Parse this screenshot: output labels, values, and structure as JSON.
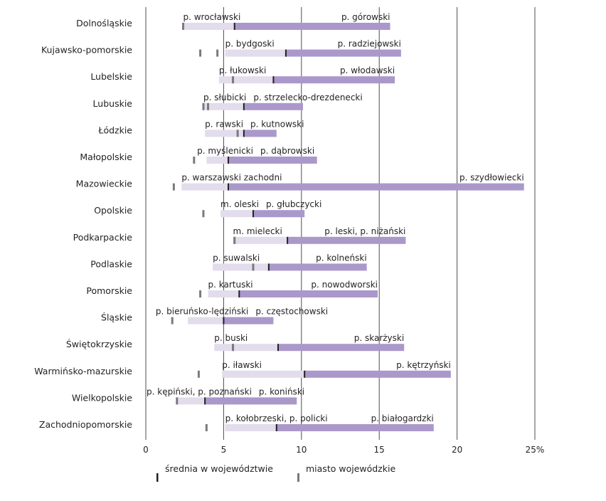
{
  "chart_data": {
    "type": "bar",
    "subtype": "range-bar-horizontal",
    "xlim": [
      0,
      25
    ],
    "x_ticks": [
      "0",
      "5",
      "10",
      "15",
      "20",
      "25%"
    ],
    "grid": true,
    "colors": {
      "low_segment": "#e2dcec",
      "high_segment": "#ab98cb",
      "average_marker": "#231f20",
      "city_marker": "#7a7a7a",
      "grid": "#4d4d4d"
    },
    "legend": {
      "placement": "bottom",
      "items": [
        {
          "label": "średnia w województwie",
          "marker": "average_marker"
        },
        {
          "label": "miasto wojewódzkie",
          "marker": "city_marker"
        }
      ]
    },
    "rows": [
      {
        "region": "Dolnośląskie",
        "min": 2.4,
        "min_label": "p. wrocławski",
        "avg": 5.7,
        "max": 15.7,
        "max_label": "p. górowski",
        "cities": [
          2.4
        ]
      },
      {
        "region": "Kujawsko-pomorskie",
        "min": 5.1,
        "min_label": "p. bydgoski",
        "avg": 9.0,
        "max": 16.4,
        "max_label": "p. radziejowski",
        "cities": [
          3.5,
          4.6
        ]
      },
      {
        "region": "Lubelskie",
        "min": 4.7,
        "min_label": "p. łukowski",
        "avg": 8.2,
        "max": 16.0,
        "max_label": "p. włodawski",
        "cities": [
          5.6
        ]
      },
      {
        "region": "Lubuskie",
        "min": 3.7,
        "min_label": "p. słubicki",
        "avg": 6.3,
        "max": 10.1,
        "max_label": "p. strzelecko-drezdenecki",
        "cities": [
          3.7,
          4.0
        ]
      },
      {
        "region": "Łódzkie",
        "min": 3.8,
        "min_label": "p. rawski",
        "avg": 6.3,
        "max": 8.4,
        "max_label": "p. kutnowski",
        "cities": [
          5.9
        ]
      },
      {
        "region": "Małopolskie",
        "min": 3.9,
        "min_label": "p. myślenicki",
        "avg": 5.3,
        "max": 11.0,
        "max_label": "p. dąbrowski",
        "cities": [
          3.1
        ]
      },
      {
        "region": "Mazowieckie",
        "min": 2.3,
        "min_label": "p. warszawski zachodni",
        "avg": 5.3,
        "max": 24.3,
        "max_label": "p. szydłowiecki",
        "cities": [
          1.8
        ]
      },
      {
        "region": "Opolskie",
        "min": 4.8,
        "min_label": "m. oleski",
        "avg": 6.9,
        "max": 10.2,
        "max_label": "p. głubczycki",
        "cities": [
          3.7
        ]
      },
      {
        "region": "Podkarpackie",
        "min": 5.6,
        "min_label": "m. mielecki",
        "avg": 9.1,
        "max": 16.7,
        "max_label": "p. leski, p. niżański",
        "cities": [
          5.7
        ]
      },
      {
        "region": "Podlaskie",
        "min": 4.3,
        "min_label": "p. suwalski",
        "avg": 7.9,
        "max": 14.2,
        "max_label": "p. kolneński",
        "cities": [
          6.9
        ]
      },
      {
        "region": "Pomorskie",
        "min": 4.0,
        "min_label": "p. kartuski",
        "avg": 6.0,
        "max": 14.9,
        "max_label": "p. nowodworski",
        "cities": [
          3.5
        ]
      },
      {
        "region": "Śląskie",
        "min": 2.7,
        "min_label": "p. bieruńsko-lędziński",
        "avg": 5.0,
        "max": 8.2,
        "max_label": "p. częstochowski",
        "cities": [
          1.7
        ]
      },
      {
        "region": "Świętokrzyskie",
        "min": 4.4,
        "min_label": "p. buski",
        "avg": 8.5,
        "max": 16.6,
        "max_label": "p. skarżyski",
        "cities": [
          5.6
        ]
      },
      {
        "region": "Warmińsko-mazurskie",
        "min": 4.9,
        "min_label": "p. iławski",
        "avg": 10.2,
        "max": 19.6,
        "max_label": "p. kętrzyński",
        "cities": [
          3.4
        ]
      },
      {
        "region": "Wielkopolskie",
        "min": 2.0,
        "min_label": "p. kępiński, p. poznański",
        "avg": 3.8,
        "max": 9.7,
        "max_label": "p. koniński",
        "cities": [
          2.0
        ]
      },
      {
        "region": "Zachodniopomorskie",
        "min": 5.1,
        "min_label": "p. kołobrzeski, p. policki",
        "avg": 8.4,
        "max": 18.5,
        "max_label": "p. białogardzki",
        "cities": [
          3.9
        ]
      }
    ]
  }
}
